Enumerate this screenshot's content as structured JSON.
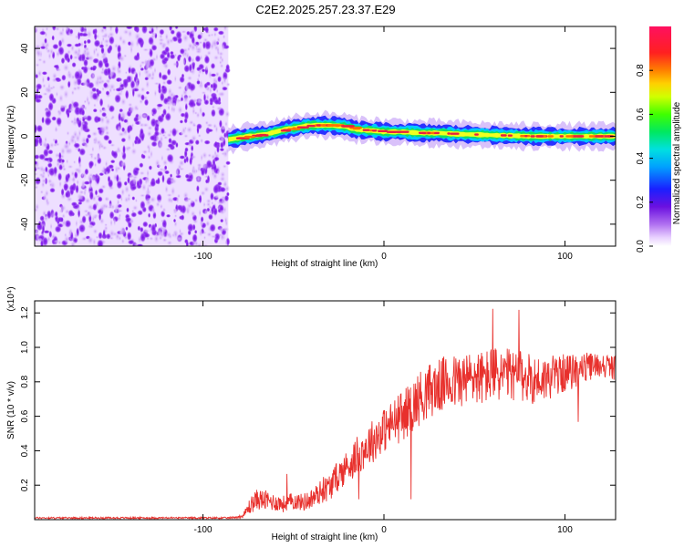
{
  "title": "C2E2.2025.257.23.37.E29",
  "colors": {
    "snr_line": "#e8302c",
    "background": "#ffffff",
    "axis": "#000000"
  },
  "chart_data": [
    {
      "type": "heatmap",
      "name": "spectrogram",
      "title": "C2E2.2025.257.23.37.E29",
      "xlabel": "Height of straight line (km)",
      "ylabel": "Frequency (Hz)",
      "xlim": [
        -193,
        128
      ],
      "ylim": [
        -50,
        50
      ],
      "xticks": [
        -100,
        0,
        100
      ],
      "yticks": [
        -40,
        -20,
        0,
        20,
        40
      ],
      "noise_region_x": [
        -193,
        -86
      ],
      "signal_start_x": -86,
      "ridge": {
        "x": [
          -86,
          -75,
          -65,
          -55,
          -45,
          -40,
          -30,
          -22,
          -15,
          -5,
          0,
          10,
          20,
          30,
          40,
          50,
          60,
          70,
          80,
          90,
          100,
          110,
          128
        ],
        "y": [
          -1.5,
          0,
          1,
          3,
          4.5,
          5,
          5,
          4.5,
          3,
          2.5,
          2,
          2,
          1.5,
          1.5,
          1,
          0.8,
          0.5,
          0.3,
          0,
          0,
          0,
          0,
          0
        ]
      },
      "colorbar": {
        "label": "Normalized spectral amplitude",
        "ticks": [
          0.0,
          0.2,
          0.4,
          0.6,
          0.8
        ],
        "range": [
          0,
          1
        ]
      }
    },
    {
      "type": "line",
      "name": "snr",
      "xlabel": "Height of straight line (km)",
      "ylabel": "SNR (10 * v/v)",
      "scale_label": "(x10⁴)",
      "xlim": [
        -193,
        128
      ],
      "ylim": [
        0,
        1.27
      ],
      "xticks": [
        -100,
        0,
        100
      ],
      "yticks": [
        0.2,
        0.4,
        0.6,
        0.8,
        1.0,
        1.2
      ],
      "series": [
        {
          "name": "SNR",
          "x": [
            -193,
            -150,
            -100,
            -85,
            -78,
            -74,
            -70,
            -65,
            -60,
            -55,
            -50,
            -45,
            -40,
            -35,
            -30,
            -25,
            -20,
            -15,
            -10,
            -5,
            0,
            5,
            10,
            15,
            20,
            25,
            30,
            35,
            40,
            45,
            50,
            55,
            60,
            65,
            70,
            75,
            80,
            85,
            90,
            95,
            100,
            105,
            110,
            115,
            120,
            128
          ],
          "values": [
            0.01,
            0.01,
            0.01,
            0.01,
            0.02,
            0.08,
            0.12,
            0.11,
            0.1,
            0.09,
            0.11,
            0.1,
            0.12,
            0.16,
            0.19,
            0.26,
            0.31,
            0.37,
            0.42,
            0.47,
            0.52,
            0.56,
            0.6,
            0.65,
            0.71,
            0.75,
            0.77,
            0.8,
            0.8,
            0.81,
            0.83,
            0.82,
            0.85,
            0.84,
            0.84,
            0.83,
            0.82,
            0.81,
            0.82,
            0.84,
            0.85,
            0.86,
            0.88,
            0.89,
            0.9,
            0.88
          ],
          "noise_amplitude": [
            0.005,
            0.005,
            0.005,
            0.005,
            0.01,
            0.05,
            0.06,
            0.06,
            0.05,
            0.05,
            0.05,
            0.05,
            0.06,
            0.07,
            0.08,
            0.09,
            0.1,
            0.11,
            0.12,
            0.13,
            0.13,
            0.14,
            0.15,
            0.15,
            0.16,
            0.16,
            0.16,
            0.16,
            0.16,
            0.16,
            0.16,
            0.16,
            0.16,
            0.16,
            0.15,
            0.15,
            0.15,
            0.14,
            0.13,
            0.12,
            0.11,
            0.1,
            0.09,
            0.08,
            0.07,
            0.07
          ]
        }
      ]
    }
  ]
}
